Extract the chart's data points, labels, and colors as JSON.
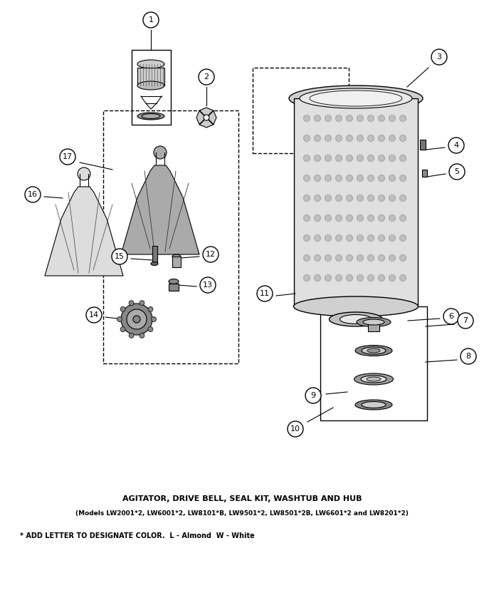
{
  "title": "AGITATOR, DRIVE BELL, SEAL KIT, WASHTUB AND HUB",
  "subtitle": "(Models LW2001*2, LW6001*2, LW8101*B, LW9501*2, LW8501*2B, LW6601*2 and LW8201*2)",
  "footnote": "* ADD LETTER TO DESIGNATE COLOR.  L - Almond  W - White",
  "title_fontsize": 8,
  "subtitle_fontsize": 6.5,
  "footnote_fontsize": 7,
  "bg_color": "#ffffff",
  "line_color": "#000000"
}
